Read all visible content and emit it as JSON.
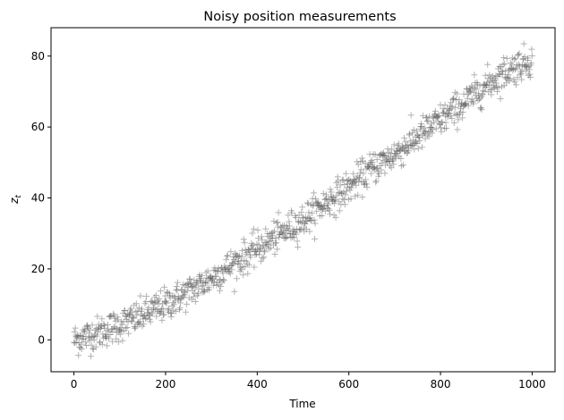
{
  "chart_data": {
    "type": "scatter",
    "title": "Noisy position measurements",
    "xlabel": "Time",
    "ylabel": "z",
    "ylabel_subscript": "t",
    "xlim": [
      -50,
      1050
    ],
    "ylim": [
      -9,
      88
    ],
    "x_ticks": [
      0,
      200,
      400,
      600,
      800,
      1000
    ],
    "y_ticks": [
      0,
      20,
      40,
      60,
      80
    ],
    "marker": "+",
    "marker_color": "#555555",
    "grid": false,
    "trend": {
      "description": "noisy measurements around quadratic curve z = 0.000075*t^2 + 0.004*t",
      "x_start": 0,
      "x_end": 1000,
      "n_points": 1000,
      "y_start": 0,
      "y_end": 79,
      "noise_sd": 2.3
    },
    "series": [
      {
        "name": "",
        "x": [
          0,
          50,
          100,
          150,
          200,
          250,
          300,
          350,
          400,
          450,
          500,
          550,
          600,
          650,
          700,
          750,
          800,
          850,
          900,
          950,
          1000
        ],
        "y": [
          0,
          1.9,
          4.2,
          6.9,
          10,
          13.5,
          17.3,
          21.6,
          25.6,
          29.8,
          33.7,
          38.7,
          43,
          48.3,
          52.3,
          57.2,
          61.9,
          66.6,
          71.8,
          76.2,
          79
        ]
      }
    ]
  }
}
